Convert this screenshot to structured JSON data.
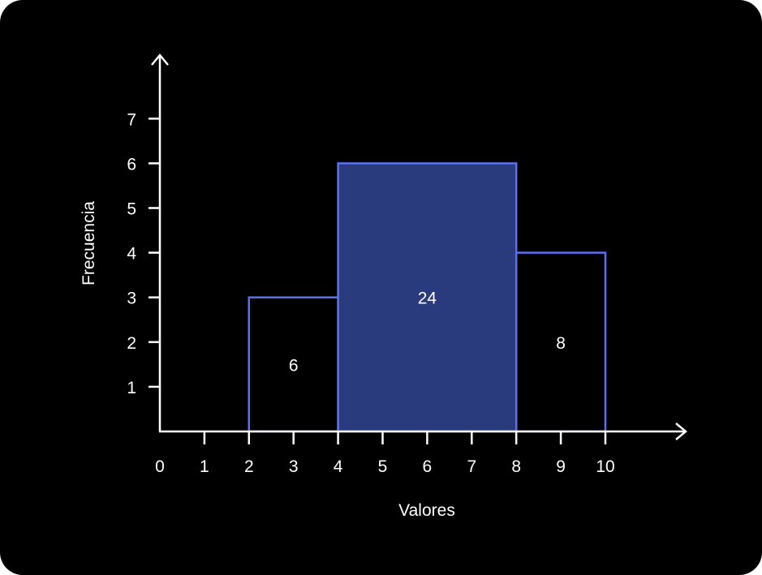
{
  "chart_data": {
    "type": "bar",
    "xlabel": "Valores",
    "ylabel": "Frecuencia",
    "x_ticks": [
      "0",
      "1",
      "2",
      "3",
      "4",
      "5",
      "6",
      "7",
      "8",
      "9",
      "10"
    ],
    "y_ticks": [
      "1",
      "2",
      "3",
      "4",
      "5",
      "6",
      "7"
    ],
    "xlim": [
      0,
      10
    ],
    "ylim": [
      0,
      7
    ],
    "bins": [
      {
        "x_start": 2,
        "x_end": 4,
        "frequency": 3,
        "label": "6",
        "highlighted": false
      },
      {
        "x_start": 4,
        "x_end": 8,
        "frequency": 6,
        "label": "24",
        "highlighted": true
      },
      {
        "x_start": 8,
        "x_end": 10,
        "frequency": 4,
        "label": "8",
        "highlighted": false
      }
    ],
    "grid": false
  },
  "colors": {
    "background": "#000000",
    "axis": "#ffffff",
    "bar_stroke": "#5c71f0",
    "highlight_fill": "#293a7d"
  }
}
